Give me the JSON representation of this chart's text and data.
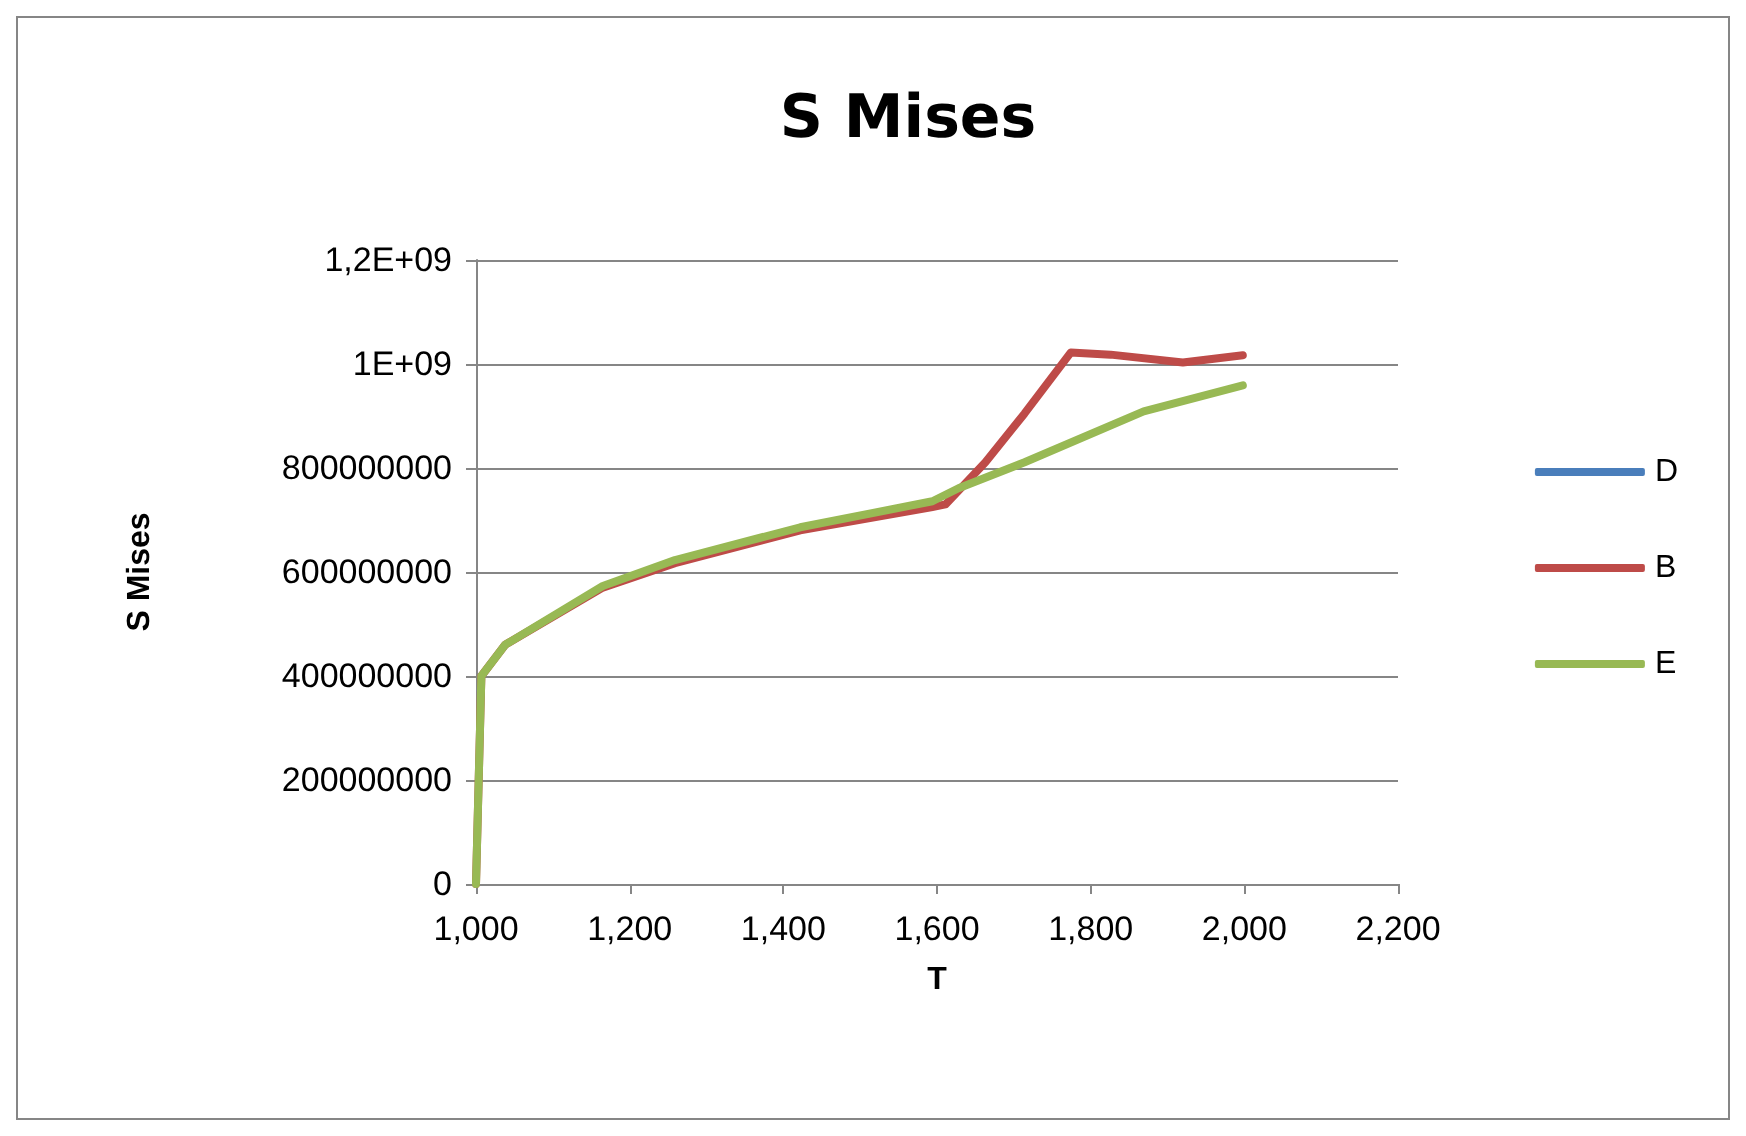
{
  "chart_data": {
    "type": "line",
    "title": "S Mises",
    "xlabel": "T",
    "ylabel": "S Mises",
    "xlim": [
      1000,
      2200
    ],
    "xticks": [
      {
        "value": 1000,
        "label": "1,000"
      },
      {
        "value": 1200,
        "label": "1,200"
      },
      {
        "value": 1400,
        "label": "1,400"
      },
      {
        "value": 1600,
        "label": "1,600"
      },
      {
        "value": 1800,
        "label": "1,800"
      },
      {
        "value": 2000,
        "label": "2,000"
      },
      {
        "value": 2200,
        "label": "2,200"
      }
    ],
    "ylim": [
      0,
      1200000000
    ],
    "yticks": [
      0,
      200000000,
      400000000,
      600000000,
      800000000,
      {
        "value": 1000000000,
        "label": "1E+09"
      },
      {
        "value": 1200000000,
        "label": "1,2E+09"
      }
    ],
    "grid": "y",
    "legend": "right",
    "marker": "none",
    "line_style": "solid",
    "series": [
      {
        "name": "D",
        "color": "#4a7ebb"
      },
      {
        "name": "B",
        "color": "#be4b48",
        "x": [
          1000,
          1007,
          1038,
          1165,
          1259,
          1422,
          1594,
          1611,
          1663,
          1714,
          1774,
          1826,
          1920,
          1998
        ],
        "values": [
          0,
          400000000,
          460000000,
          570000000,
          617000000,
          680000000,
          725000000,
          730000000,
          811000000,
          905000000,
          1022000000,
          1018000000,
          1003000000,
          1017000000
        ]
      },
      {
        "name": "E",
        "color": "#98b954",
        "x": [
          1000,
          1007,
          1038,
          1165,
          1259,
          1422,
          1594,
          1628,
          1714,
          1869,
          1998
        ],
        "values": [
          0,
          400000000,
          460000000,
          573000000,
          623000000,
          686000000,
          736000000,
          761000000,
          811000000,
          909000000,
          959000000
        ]
      }
    ]
  }
}
